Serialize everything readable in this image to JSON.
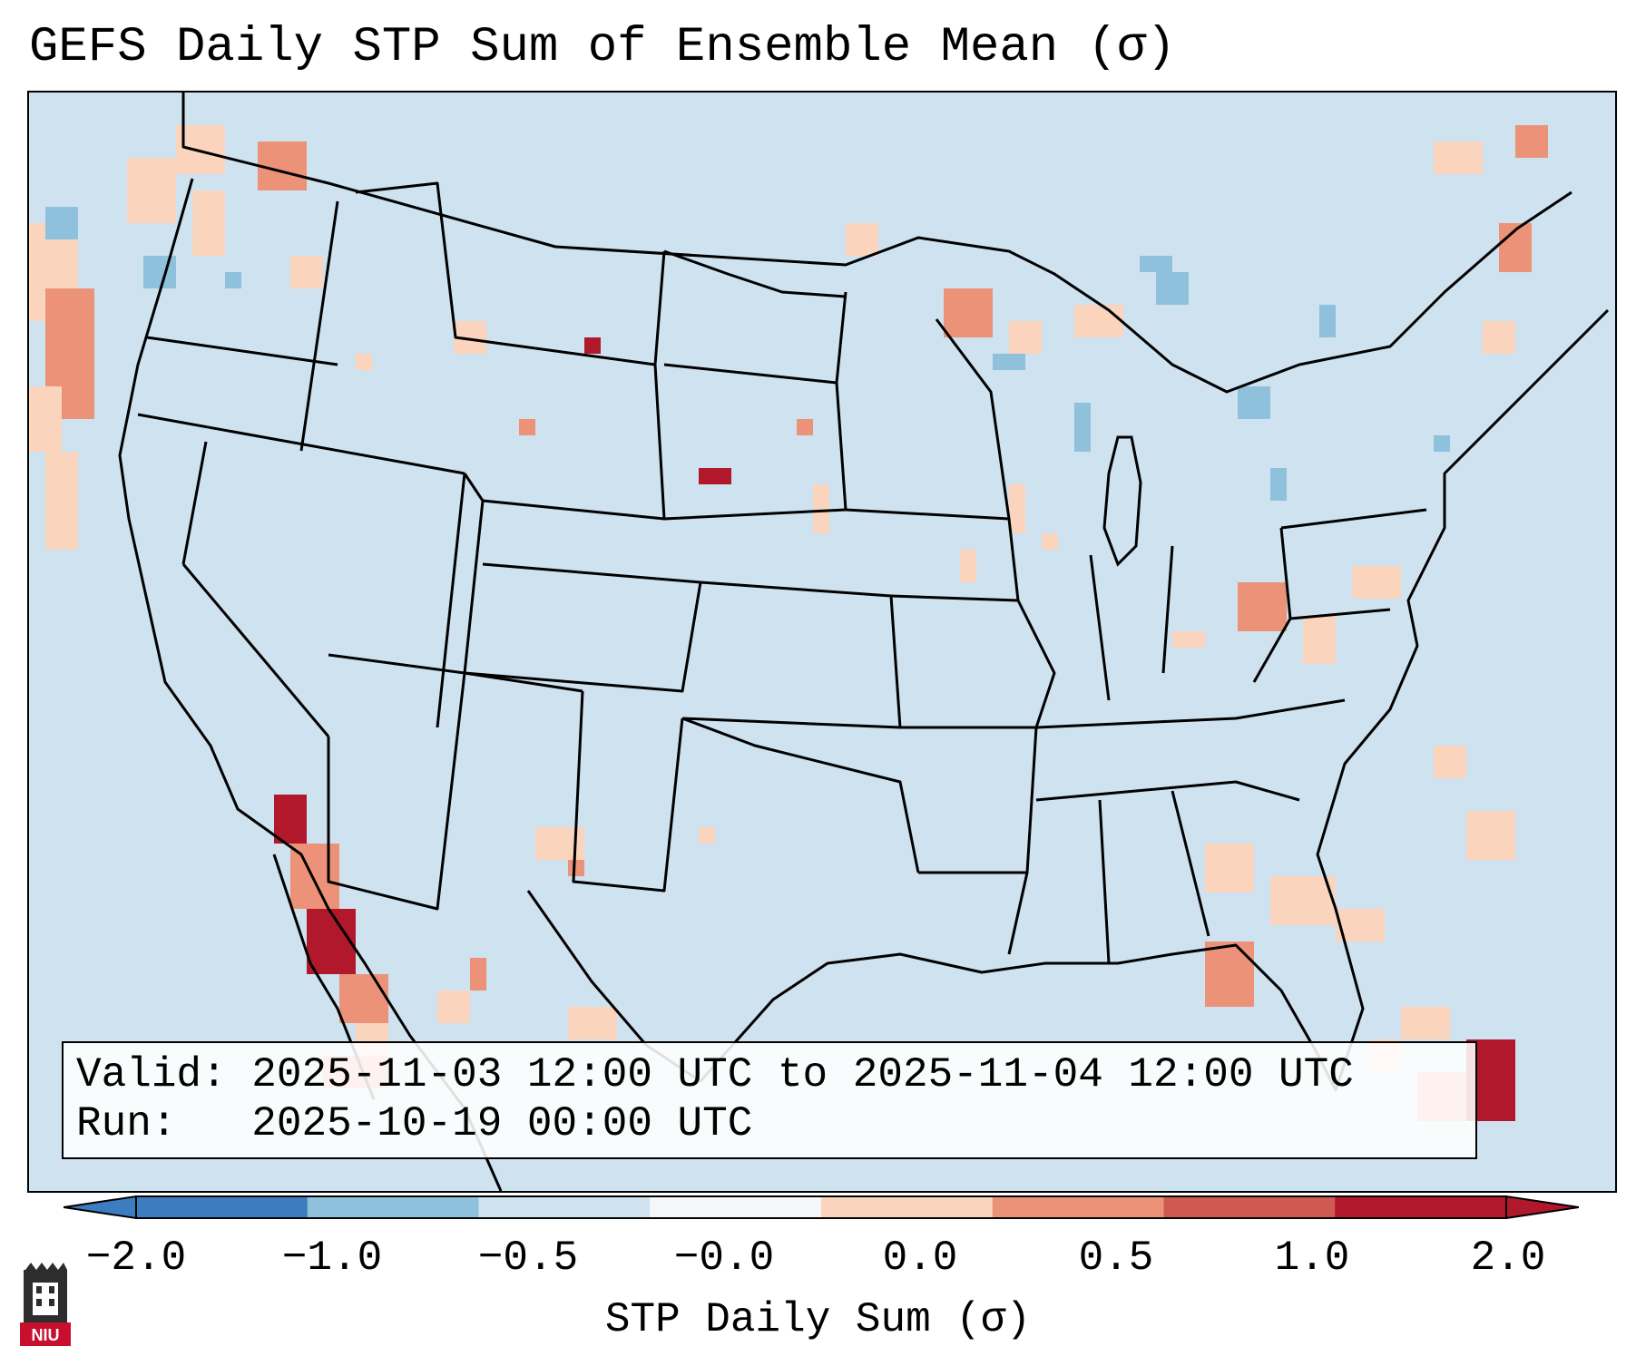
{
  "title": "GEFS Daily STP Sum of Ensemble Mean (σ)",
  "info": {
    "valid_label": "Valid:",
    "valid_value": "2025-11-03 12:00 UTC to 2025-11-04 12:00 UTC",
    "run_label": "Run:",
    "run_value": "2025-10-19 00:00 UTC"
  },
  "colorbar": {
    "label": "STP Daily Sum (σ)",
    "ticks": [
      "−2.0",
      "−1.0",
      "−0.5",
      "−0.0",
      "0.0",
      "0.5",
      "1.0",
      "2.0"
    ],
    "colors": [
      "#3b7dbe",
      "#8fc0dc",
      "#cfe2ef",
      "#f5f6f8",
      "#fbd4be",
      "#ec9278",
      "#d05a4f",
      "#b2182b"
    ]
  },
  "map": {
    "background_color": "#cfe2ef",
    "levels": {
      "light_red": "#fbd4be",
      "medium_red": "#ec9278",
      "strong_red": "#d05a4f",
      "dark_red": "#b2182b",
      "light_blue": "#8fc0dc"
    }
  },
  "logo": {
    "text": "NIU"
  }
}
